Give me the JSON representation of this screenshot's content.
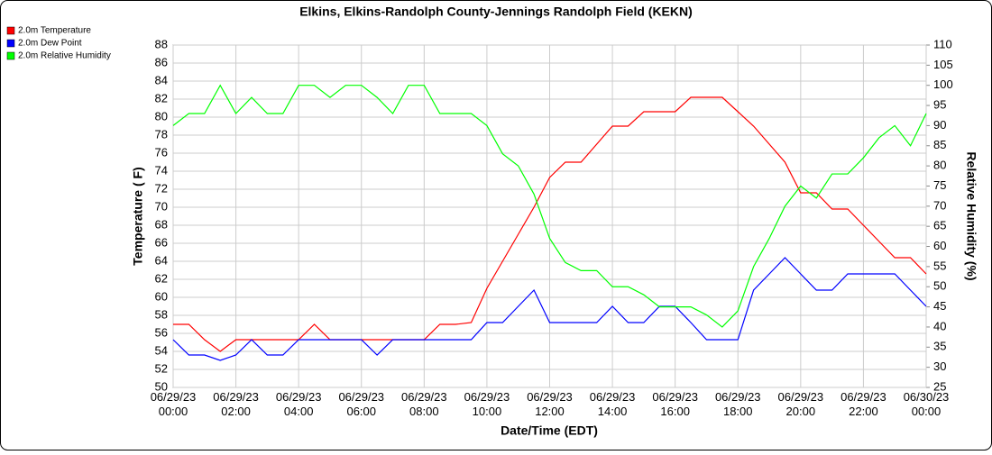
{
  "chart_data": {
    "type": "line",
    "title": "Elkins, Elkins-Randolph County-Jennings Randolph Field (KEKN)",
    "xlabel": "Date/Time (EDT)",
    "ylabel": "Temperature ( F)",
    "y2label": "Relative Humidity (%)",
    "x": [
      "06/29/23 00:00",
      "06/29/23 00:30",
      "06/29/23 01:00",
      "06/29/23 01:30",
      "06/29/23 02:00",
      "06/29/23 02:30",
      "06/29/23 03:00",
      "06/29/23 03:30",
      "06/29/23 04:00",
      "06/29/23 04:30",
      "06/29/23 05:00",
      "06/29/23 05:30",
      "06/29/23 06:00",
      "06/29/23 06:30",
      "06/29/23 07:00",
      "06/29/23 07:30",
      "06/29/23 08:00",
      "06/29/23 08:30",
      "06/29/23 09:00",
      "06/29/23 09:30",
      "06/29/23 10:00",
      "06/29/23 10:30",
      "06/29/23 11:00",
      "06/29/23 11:30",
      "06/29/23 12:00",
      "06/29/23 12:30",
      "06/29/23 13:00",
      "06/29/23 13:30",
      "06/29/23 14:00",
      "06/29/23 14:30",
      "06/29/23 15:00",
      "06/29/23 15:30",
      "06/29/23 16:00",
      "06/29/23 16:30",
      "06/29/23 17:00",
      "06/29/23 17:30",
      "06/29/23 18:00",
      "06/29/23 18:30",
      "06/29/23 19:00",
      "06/29/23 19:30",
      "06/29/23 20:00",
      "06/29/23 20:30",
      "06/29/23 21:00",
      "06/29/23 21:30",
      "06/29/23 22:00",
      "06/29/23 22:30",
      "06/29/23 23:00",
      "06/29/23 23:30",
      "06/30/23 00:00"
    ],
    "series": [
      {
        "name": "2.0m Temperature",
        "color": "#ff0000",
        "values": [
          57,
          57,
          55.3,
          54,
          55.3,
          55.3,
          55.3,
          55.3,
          55.3,
          57,
          55.3,
          55.3,
          55.3,
          55.3,
          55.3,
          55.3,
          55.3,
          57,
          57,
          57.2,
          61,
          64,
          67,
          70,
          73.3,
          75,
          75,
          77,
          79,
          79,
          80.6,
          80.6,
          80.6,
          82.2,
          82.2,
          82.2,
          80.6,
          79,
          77,
          75,
          71.6,
          71.6,
          69.8,
          69.8,
          68,
          66.2,
          64.4,
          64.4,
          62.6
        ]
      },
      {
        "name": "2.0m Dew Point",
        "color": "#0000ff",
        "values": [
          55.3,
          53.6,
          53.6,
          53,
          53.6,
          55.3,
          53.6,
          53.6,
          55.3,
          55.3,
          55.3,
          55.3,
          55.3,
          53.6,
          55.3,
          55.3,
          55.3,
          55.3,
          55.3,
          55.3,
          57.2,
          57.2,
          59,
          60.8,
          57.2,
          57.2,
          57.2,
          57.2,
          59,
          57.2,
          57.2,
          59,
          59,
          57.2,
          55.3,
          55.3,
          55.3,
          60.8,
          62.6,
          64.4,
          62.6,
          60.8,
          60.8,
          62.6,
          62.6,
          62.6,
          62.6,
          60.8,
          59
        ]
      },
      {
        "name": "2.0m Relative Humidity",
        "color": "#00ff00",
        "axis": "y2",
        "values": [
          90,
          93,
          93,
          100,
          93,
          97,
          93,
          93,
          100,
          100,
          97,
          100,
          100,
          97,
          93,
          100,
          100,
          93,
          93,
          93,
          90,
          83,
          80,
          73,
          62,
          56,
          54,
          54,
          50,
          50,
          48,
          45,
          45,
          45,
          43,
          40,
          44,
          55,
          62,
          70,
          75,
          72,
          78,
          78,
          82,
          87,
          90,
          85,
          93
        ]
      }
    ],
    "xlim": [
      "06/29/23 00:00",
      "06/30/23 00:00"
    ],
    "xticks": [
      {
        "value": "06/29/23 00:00",
        "label": [
          "06/29/23",
          "00:00"
        ]
      },
      {
        "value": "06/29/23 02:00",
        "label": [
          "06/29/23",
          "02:00"
        ]
      },
      {
        "value": "06/29/23 04:00",
        "label": [
          "06/29/23",
          "04:00"
        ]
      },
      {
        "value": "06/29/23 06:00",
        "label": [
          "06/29/23",
          "06:00"
        ]
      },
      {
        "value": "06/29/23 08:00",
        "label": [
          "06/29/23",
          "08:00"
        ]
      },
      {
        "value": "06/29/23 10:00",
        "label": [
          "06/29/23",
          "10:00"
        ]
      },
      {
        "value": "06/29/23 12:00",
        "label": [
          "06/29/23",
          "12:00"
        ]
      },
      {
        "value": "06/29/23 14:00",
        "label": [
          "06/29/23",
          "14:00"
        ]
      },
      {
        "value": "06/29/23 16:00",
        "label": [
          "06/29/23",
          "16:00"
        ]
      },
      {
        "value": "06/29/23 18:00",
        "label": [
          "06/29/23",
          "18:00"
        ]
      },
      {
        "value": "06/29/23 20:00",
        "label": [
          "06/29/23",
          "20:00"
        ]
      },
      {
        "value": "06/29/23 22:00",
        "label": [
          "06/29/23",
          "22:00"
        ]
      },
      {
        "value": "06/30/23 00:00",
        "label": [
          "06/30/23",
          "00:00"
        ]
      }
    ],
    "ylim": [
      50,
      88
    ],
    "yticks": [
      50,
      52,
      54,
      56,
      58,
      60,
      62,
      64,
      66,
      68,
      70,
      72,
      74,
      76,
      78,
      80,
      82,
      84,
      86,
      88
    ],
    "y2lim": [
      25,
      110
    ],
    "y2ticks": [
      25,
      30,
      35,
      40,
      45,
      50,
      55,
      60,
      65,
      70,
      75,
      80,
      85,
      90,
      95,
      100,
      105,
      110
    ],
    "grid": true
  }
}
